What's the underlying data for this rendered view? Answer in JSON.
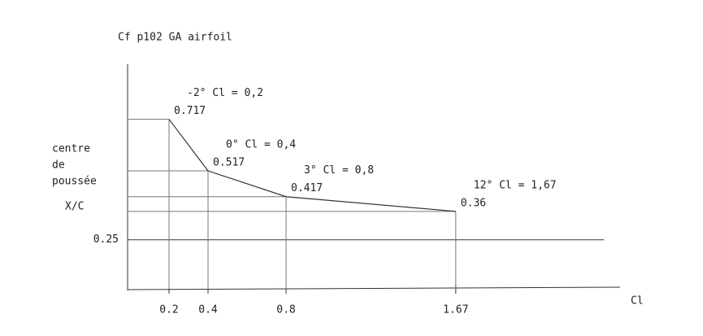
{
  "chart_data": {
    "type": "line",
    "title": "Cf p102 GA airfoil",
    "y_label": [
      "centre",
      "de",
      "poussée",
      "X/C"
    ],
    "x_label": "Cl",
    "series": [
      {
        "x": [
          0.2,
          0.4,
          0.8,
          1.67
        ],
        "values": [
          0.717,
          0.517,
          0.417,
          0.36
        ],
        "color": "#333333"
      }
    ],
    "annotations": [
      "-2° Cl = 0,2",
      "0° Cl = 0,4",
      "3°  Cl = 0,8",
      "12° Cl = 1,67"
    ],
    "xlim": [
      0,
      2.5
    ],
    "ylim": [
      0.06,
      0.93
    ],
    "xticks": [
      0.2,
      0.4,
      0.8,
      1.67
    ],
    "yticks": [
      0.25
    ]
  }
}
